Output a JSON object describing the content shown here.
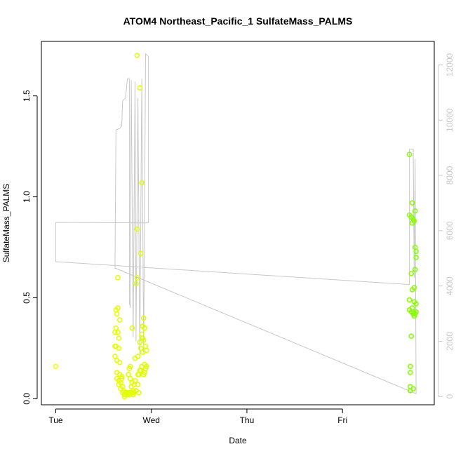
{
  "chart_data": {
    "type": "scatter",
    "title": "ATOM4 Northeast_Pacific_1 SulfateMass_PALMS",
    "xlabel": "Date",
    "ylabel": "SulfateMass_PALMS",
    "x_ticks": [
      "Tue",
      "Wed",
      "Thu",
      "Fri"
    ],
    "x_range_days": [
      -0.15,
      3.96
    ],
    "ylim": [
      -0.03,
      1.77
    ],
    "y_ticks": [
      0.0,
      0.5,
      1.0,
      1.5
    ],
    "y_tick_labels": [
      "0.0",
      "0.5",
      "1.0",
      "1.5"
    ],
    "y2lim": [
      -300,
      12850
    ],
    "y2_ticks": [
      0,
      2000,
      4000,
      6000,
      8000,
      10000,
      12000
    ],
    "y2_tick_labels": [
      "0",
      "2000",
      "4000",
      "6000",
      "8000",
      "10000",
      "12000"
    ],
    "point_color_low": "#ffff00",
    "point_color_high": "#80ff00",
    "line_color": "#c8c8c8",
    "points": [
      [
        0.0,
        0.16
      ],
      [
        0.62,
        0.33
      ],
      [
        0.62,
        0.26
      ],
      [
        0.62,
        0.21
      ],
      [
        0.63,
        0.44
      ],
      [
        0.63,
        0.35
      ],
      [
        0.63,
        0.26
      ],
      [
        0.64,
        0.42
      ],
      [
        0.64,
        0.19
      ],
      [
        0.64,
        0.13
      ],
      [
        0.64,
        0.1
      ],
      [
        0.65,
        0.45
      ],
      [
        0.65,
        0.33
      ],
      [
        0.65,
        0.6
      ],
      [
        0.66,
        0.3
      ],
      [
        0.66,
        0.25
      ],
      [
        0.66,
        0.09
      ],
      [
        0.66,
        0.07
      ],
      [
        0.67,
        0.39
      ],
      [
        0.67,
        0.18
      ],
      [
        0.67,
        0.12
      ],
      [
        0.68,
        0.08
      ],
      [
        0.68,
        0.05
      ],
      [
        0.69,
        0.11
      ],
      [
        0.69,
        0.1
      ],
      [
        0.7,
        0.06
      ],
      [
        0.7,
        0.03
      ],
      [
        0.71,
        0.04
      ],
      [
        0.72,
        0.02
      ],
      [
        0.72,
        0.01
      ],
      [
        0.73,
        0.03
      ],
      [
        0.73,
        0.02
      ],
      [
        0.74,
        0.03
      ],
      [
        0.75,
        0.02
      ],
      [
        0.76,
        0.12
      ],
      [
        0.76,
        0.03
      ],
      [
        0.77,
        0.15
      ],
      [
        0.77,
        0.02
      ],
      [
        0.78,
        0.16
      ],
      [
        0.78,
        0.1
      ],
      [
        0.79,
        0.06
      ],
      [
        0.79,
        0.03
      ],
      [
        0.8,
        0.35
      ],
      [
        0.8,
        0.08
      ],
      [
        0.81,
        0.04
      ],
      [
        0.81,
        0.02
      ],
      [
        0.82,
        0.07
      ],
      [
        0.82,
        0.03
      ],
      [
        0.83,
        0.2
      ],
      [
        0.83,
        0.09
      ],
      [
        0.84,
        0.57
      ],
      [
        0.84,
        0.04
      ],
      [
        0.85,
        1.7
      ],
      [
        0.85,
        0.84
      ],
      [
        0.85,
        0.6
      ],
      [
        0.86,
        0.21
      ],
      [
        0.86,
        0.12
      ],
      [
        0.86,
        0.07
      ],
      [
        0.87,
        0.12
      ],
      [
        0.87,
        0.03
      ],
      [
        0.88,
        1.54
      ],
      [
        0.88,
        0.28
      ],
      [
        0.88,
        0.14
      ],
      [
        0.89,
        0.72
      ],
      [
        0.89,
        0.25
      ],
      [
        0.89,
        0.14
      ],
      [
        0.9,
        1.07
      ],
      [
        0.9,
        0.32
      ],
      [
        0.9,
        0.16
      ],
      [
        0.91,
        0.36
      ],
      [
        0.91,
        0.3
      ],
      [
        0.91,
        0.23
      ],
      [
        0.92,
        0.4
      ],
      [
        0.92,
        0.29
      ],
      [
        0.92,
        0.12
      ],
      [
        0.93,
        0.35
      ],
      [
        0.93,
        0.17
      ],
      [
        0.93,
        0.13
      ],
      [
        0.94,
        0.26
      ],
      [
        0.94,
        0.15
      ],
      [
        0.95,
        0.24
      ],
      [
        0.95,
        0.16
      ],
      [
        3.7,
        1.21
      ],
      [
        3.7,
        0.91
      ],
      [
        3.7,
        0.49
      ],
      [
        3.7,
        0.44
      ],
      [
        3.71,
        0.13
      ],
      [
        3.71,
        0.06
      ],
      [
        3.71,
        0.04
      ],
      [
        3.71,
        0.16
      ],
      [
        3.72,
        0.9
      ],
      [
        3.72,
        0.62
      ],
      [
        3.72,
        0.43
      ],
      [
        3.72,
        0.31
      ],
      [
        3.73,
        0.97
      ],
      [
        3.73,
        0.87
      ],
      [
        3.73,
        0.54
      ],
      [
        3.73,
        0.45
      ],
      [
        3.74,
        0.89
      ],
      [
        3.74,
        0.43
      ],
      [
        3.74,
        0.42
      ],
      [
        3.74,
        0.05
      ],
      [
        3.75,
        0.88
      ],
      [
        3.75,
        0.55
      ],
      [
        3.75,
        0.48
      ],
      [
        3.75,
        0.41
      ],
      [
        3.76,
        0.93
      ],
      [
        3.76,
        0.75
      ],
      [
        3.76,
        0.64
      ],
      [
        3.76,
        0.42
      ],
      [
        3.77,
        0.73
      ],
      [
        3.77,
        0.47
      ],
      [
        3.77,
        0.43
      ],
      [
        3.77,
        0.7
      ]
    ],
    "line_secondary": [
      [
        0.0,
        6300
      ],
      [
        0.0,
        4880
      ],
      [
        3.7,
        4050
      ],
      [
        3.7,
        8950
      ],
      [
        3.74,
        8950
      ],
      [
        3.75,
        4300
      ],
      [
        3.76,
        8600
      ],
      [
        3.77,
        100
      ],
      [
        0.62,
        4650
      ],
      [
        0.63,
        9650
      ],
      [
        0.67,
        9700
      ],
      [
        0.69,
        9800
      ],
      [
        0.7,
        10700
      ],
      [
        0.73,
        10800
      ],
      [
        0.75,
        11500
      ],
      [
        0.77,
        11500
      ],
      [
        0.77,
        3400
      ],
      [
        0.78,
        3200
      ],
      [
        0.79,
        11450
      ],
      [
        0.81,
        2150
      ],
      [
        0.83,
        11400
      ],
      [
        0.84,
        2000
      ],
      [
        0.86,
        10800
      ],
      [
        0.88,
        1500
      ],
      [
        0.9,
        11500
      ],
      [
        0.92,
        1600
      ],
      [
        0.94,
        12400
      ],
      [
        0.97,
        12300
      ],
      [
        0.97,
        6280
      ],
      [
        0.0,
        6300
      ]
    ]
  }
}
